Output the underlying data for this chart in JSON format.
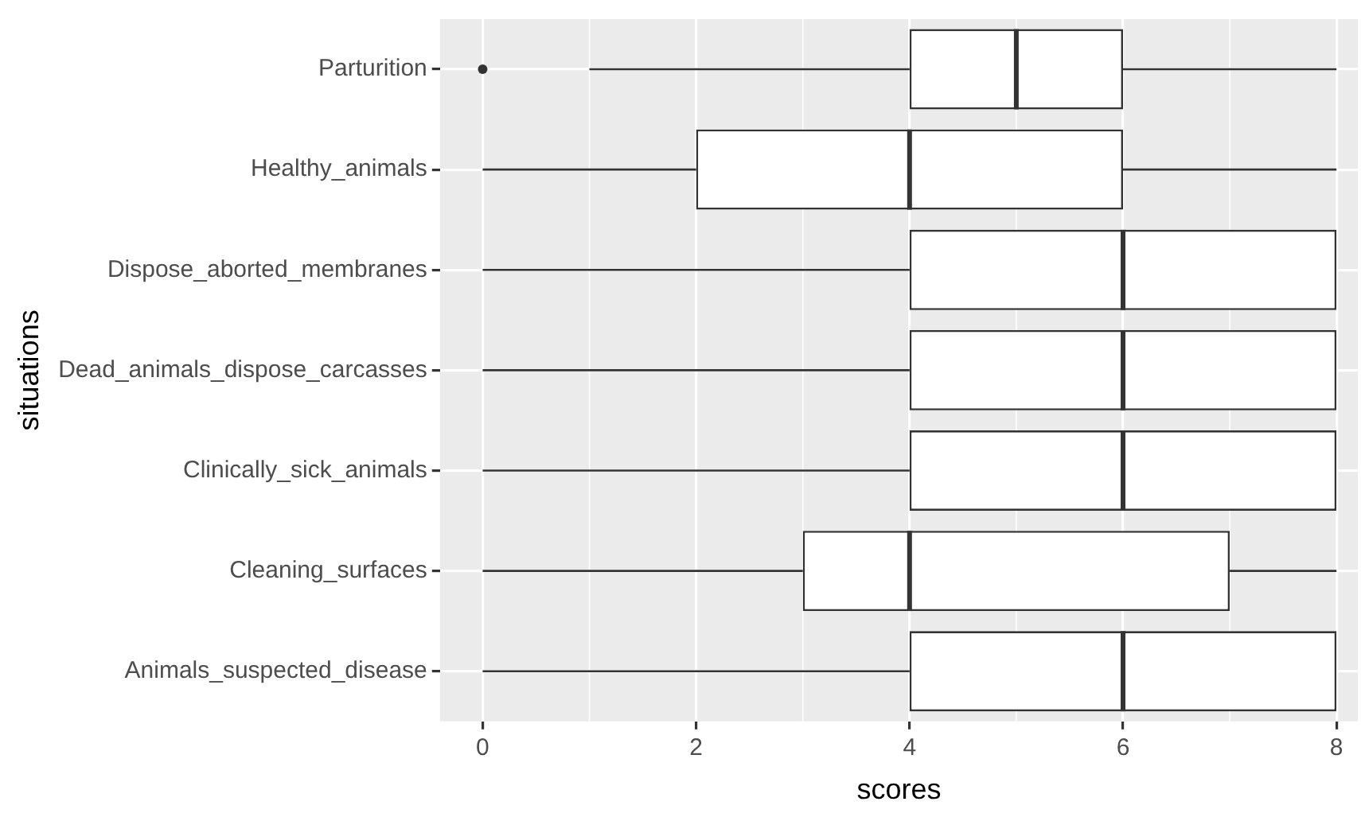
{
  "chart_data": {
    "type": "box",
    "orientation": "horizontal",
    "xlabel": "scores",
    "ylabel": "situations",
    "categories": [
      "Parturition",
      "Healthy_animals",
      "Dispose_aborted_membranes",
      "Dead_animals_dispose_carcasses",
      "Clinically_sick_animals",
      "Cleaning_surfaces",
      "Animals_suspected_disease"
    ],
    "boxes": [
      {
        "low": 1,
        "q1": 4,
        "median": 5,
        "q3": 6,
        "high": 8,
        "outliers": [
          0
        ]
      },
      {
        "low": 0,
        "q1": 2,
        "median": 4,
        "q3": 6,
        "high": 8
      },
      {
        "low": 0,
        "q1": 4,
        "median": 6,
        "q3": 8,
        "high": 8
      },
      {
        "low": 0,
        "q1": 4,
        "median": 6,
        "q3": 8,
        "high": 8
      },
      {
        "low": 0,
        "q1": 4,
        "median": 6,
        "q3": 8,
        "high": 8
      },
      {
        "low": 0,
        "q1": 3,
        "median": 4,
        "q3": 7,
        "high": 8
      },
      {
        "low": 0,
        "q1": 4,
        "median": 6,
        "q3": 8,
        "high": 8
      }
    ],
    "xlim": [
      -0.4,
      8.2
    ],
    "xticks": [
      0,
      2,
      4,
      6,
      8
    ],
    "grid": true,
    "legend": false
  }
}
